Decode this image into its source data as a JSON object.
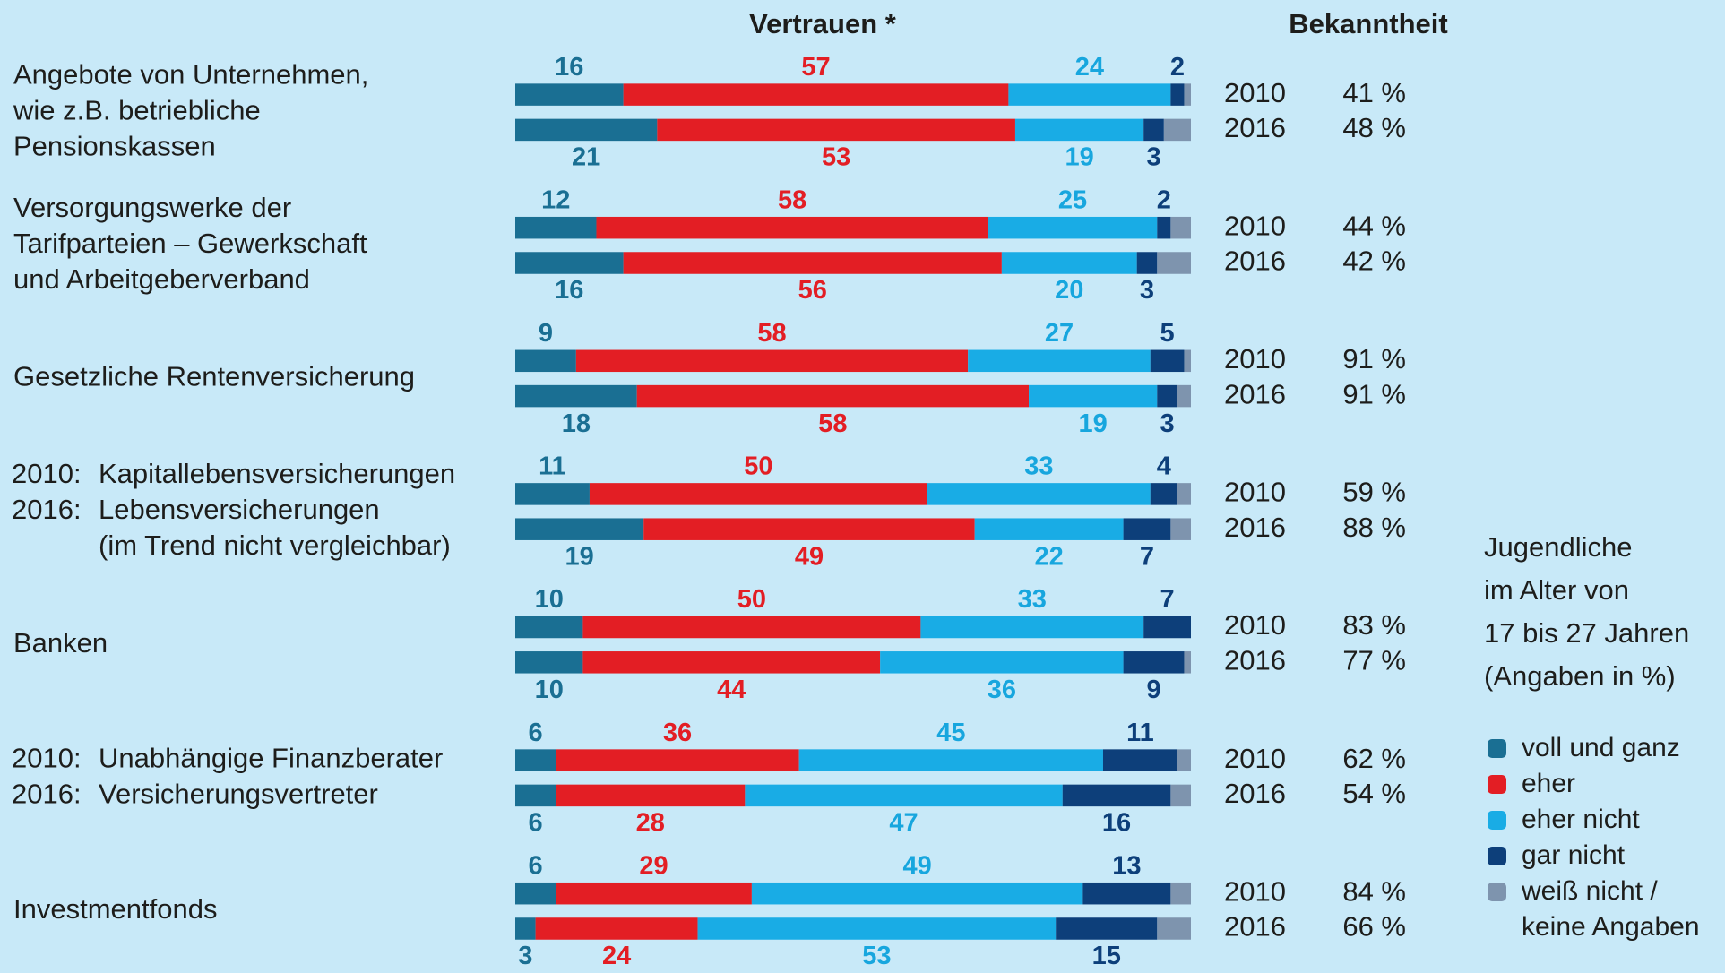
{
  "chart_data": {
    "type": "bar",
    "orientation": "horizontal",
    "stacked": true,
    "title": "Vertrauen *",
    "xlim": [
      0,
      100
    ],
    "groups": [
      {
        "label": [
          [
            "Angebote von Unternehmen,"
          ],
          [
            "wie z.B. betriebliche"
          ],
          [
            "Pensionskassen"
          ]
        ]
      },
      {
        "label": [
          [
            "Versorgungswerke der"
          ],
          [
            "Tarifparteien – Gewerkschaft"
          ],
          [
            "und Arbeitgeberverband"
          ]
        ]
      },
      {
        "label": [
          [
            "Gesetzliche Rentenversicherung"
          ]
        ]
      },
      {
        "label": [
          [
            "2010:",
            "Kapitallebensversicherungen"
          ],
          [
            "2016:",
            "Lebensversicherungen"
          ],
          [
            "(im Trend nicht vergleichbar)"
          ]
        ]
      },
      {
        "label": [
          [
            "Banken"
          ]
        ]
      },
      {
        "label": [
          [
            "2010:",
            "Unabhängige Finanzberater"
          ],
          [
            "2016:",
            "Versicherungsvertreter"
          ]
        ]
      },
      {
        "label": [
          [
            "Investmentfonds"
          ]
        ]
      }
    ],
    "categories": [
      "2010",
      "2016",
      "2010",
      "2016",
      "2010",
      "2016",
      "2010",
      "2016",
      "2010",
      "2016",
      "2010",
      "2016",
      "2010",
      "2016"
    ],
    "series": [
      {
        "name": "voll und ganz",
        "color": "#1a6f93",
        "label_color": "#1a6f93",
        "values": [
          16,
          21,
          12,
          16,
          9,
          18,
          11,
          19,
          10,
          10,
          6,
          6,
          6,
          3
        ]
      },
      {
        "name": "eher",
        "color": "#e31e24",
        "label_color": "#e31e24",
        "values": [
          57,
          53,
          58,
          56,
          58,
          58,
          50,
          49,
          50,
          44,
          36,
          28,
          29,
          24
        ]
      },
      {
        "name": "eher nicht",
        "color": "#19ace5",
        "label_color": "#17a6de",
        "values": [
          24,
          19,
          25,
          20,
          27,
          19,
          33,
          22,
          33,
          36,
          45,
          47,
          49,
          53
        ]
      },
      {
        "name": "gar nicht",
        "color": "#0d3f7a",
        "label_color": "#0d3f7a",
        "values": [
          2,
          3,
          2,
          3,
          5,
          3,
          4,
          7,
          7,
          9,
          11,
          16,
          13,
          15
        ]
      },
      {
        "name": "weiß nicht / keine Angaben",
        "color": "#7e94ae",
        "show_labels": false,
        "values": [
          1,
          4,
          3,
          5,
          1,
          2,
          2,
          3,
          0,
          1,
          2,
          3,
          3,
          5
        ]
      }
    ],
    "awareness": {
      "title": "Bekanntheit",
      "values": [
        41,
        48,
        44,
        42,
        91,
        91,
        59,
        88,
        83,
        77,
        62,
        54,
        84,
        66
      ],
      "value_labels": [
        "41 %",
        "48 %",
        "44 %",
        "42 %",
        "91 %",
        "91 %",
        "59 %",
        "88 %",
        "83 %",
        "77 %",
        "62 %",
        "54 %",
        "84 %",
        "66 %"
      ]
    },
    "note": [
      "Jugendliche",
      "im Alter von",
      "17 bis 27 Jahren",
      "(Angaben in %)"
    ]
  }
}
